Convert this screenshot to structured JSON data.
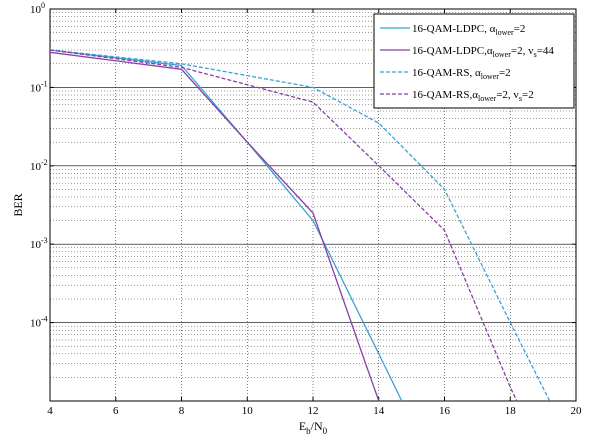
{
  "chart_data": {
    "type": "line",
    "title": "",
    "xlabel": {
      "main": "E",
      "sub1": "b",
      "sep": "/N",
      "sub2": "0"
    },
    "ylabel": "BER",
    "xlim": [
      4,
      20
    ],
    "xticks": [
      4,
      6,
      8,
      10,
      12,
      14,
      16,
      18,
      20
    ],
    "ylim": [
      1e-05,
      1
    ],
    "yscale": "log",
    "yticks": [
      {
        "value": 1,
        "base": "10",
        "exp": "0"
      },
      {
        "value": 0.1,
        "base": "10",
        "exp": "-1"
      },
      {
        "value": 0.01,
        "base": "10",
        "exp": "-2"
      },
      {
        "value": 0.001,
        "base": "10",
        "exp": "-3"
      },
      {
        "value": 0.0001,
        "base": "10",
        "exp": "-4"
      }
    ],
    "grid": true,
    "legend_position": "top-right",
    "series": [
      {
        "legend": [
          {
            "t": "16-QAM-LDPC, ",
            "sub": false
          },
          {
            "t": "α",
            "sub": false
          },
          {
            "t": "lower",
            "sub": true
          },
          {
            "t": "=2",
            "sub": false
          }
        ],
        "color": "#3aa3d6",
        "dash": "",
        "x": [
          4,
          8,
          10,
          12,
          14,
          14.7
        ],
        "y": [
          0.3,
          0.19,
          0.02,
          0.002,
          4e-05,
          1e-05
        ]
      },
      {
        "legend": [
          {
            "t": "16-QAM-LDPC,",
            "sub": false
          },
          {
            "t": "α",
            "sub": false
          },
          {
            "t": "lower",
            "sub": true
          },
          {
            "t": "=2, v",
            "sub": false
          },
          {
            "t": "s",
            "sub": true
          },
          {
            "t": "=44",
            "sub": false
          }
        ],
        "color": "#8b3fa6",
        "dash": "",
        "x": [
          4,
          8,
          10,
          12,
          13.6,
          14
        ],
        "y": [
          0.28,
          0.17,
          0.02,
          0.0025,
          3e-05,
          1e-05
        ]
      },
      {
        "legend": [
          {
            "t": "16-QAM-RS, ",
            "sub": false
          },
          {
            "t": "α",
            "sub": false
          },
          {
            "t": "lower",
            "sub": true
          },
          {
            "t": "=2",
            "sub": false
          }
        ],
        "color": "#3aa3d6",
        "dash": "4,2",
        "x": [
          4,
          8,
          12,
          14,
          16,
          18,
          19.2
        ],
        "y": [
          0.3,
          0.2,
          0.1,
          0.035,
          0.005,
          0.0001,
          1e-05
        ]
      },
      {
        "legend": [
          {
            "t": "16-QAM-RS,",
            "sub": false
          },
          {
            "t": "α",
            "sub": false
          },
          {
            "t": "lower",
            "sub": true
          },
          {
            "t": "=2, v",
            "sub": false
          },
          {
            "t": "s",
            "sub": true
          },
          {
            "t": "=2",
            "sub": false
          }
        ],
        "color": "#8b3fa6",
        "dash": "4,2",
        "x": [
          4,
          8,
          12,
          14,
          16,
          18,
          18.2
        ],
        "y": [
          0.3,
          0.18,
          0.065,
          0.01,
          0.0015,
          1.5e-05,
          1e-05
        ]
      }
    ]
  }
}
